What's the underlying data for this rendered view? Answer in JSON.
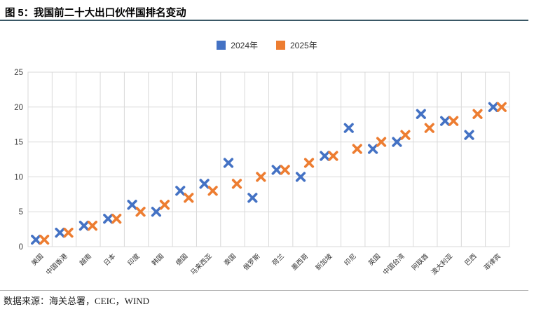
{
  "header": {
    "title": "图 5：我国前二十大出口伙伴国排名变动"
  },
  "legend": {
    "items": [
      {
        "label": "2024年",
        "color": "#4472C4"
      },
      {
        "label": "2025年",
        "color": "#ED7D31"
      }
    ]
  },
  "chart_data": {
    "type": "scatter",
    "marker": "x",
    "title": "",
    "xlabel": "",
    "ylabel": "",
    "categories": [
      "美国",
      "中国香港",
      "越南",
      "日本",
      "印度",
      "韩国",
      "德国",
      "马来西亚",
      "泰国",
      "俄罗斯",
      "荷兰",
      "墨西哥",
      "新加坡",
      "印尼",
      "英国",
      "中国台湾",
      "阿联酋",
      "澳大利亚",
      "巴西",
      "菲律宾"
    ],
    "series": [
      {
        "name": "2024年",
        "color": "#4472C4",
        "values": [
          1,
          2,
          3,
          4,
          6,
          5,
          8,
          9,
          12,
          7,
          11,
          10,
          13,
          17,
          14,
          15,
          19,
          18,
          16,
          20
        ]
      },
      {
        "name": "2025年",
        "color": "#ED7D31",
        "values": [
          1,
          2,
          3,
          4,
          5,
          6,
          7,
          8,
          9,
          10,
          11,
          12,
          13,
          14,
          15,
          16,
          17,
          18,
          19,
          20
        ]
      }
    ],
    "ylim": [
      0,
      25
    ],
    "yticks": [
      0,
      5,
      10,
      15,
      20,
      25
    ],
    "grid": true,
    "grid_color": "#d9d9d9",
    "legend_position": "top-center"
  },
  "footer": {
    "source": "数据来源：海关总署，CEIC，WIND"
  }
}
